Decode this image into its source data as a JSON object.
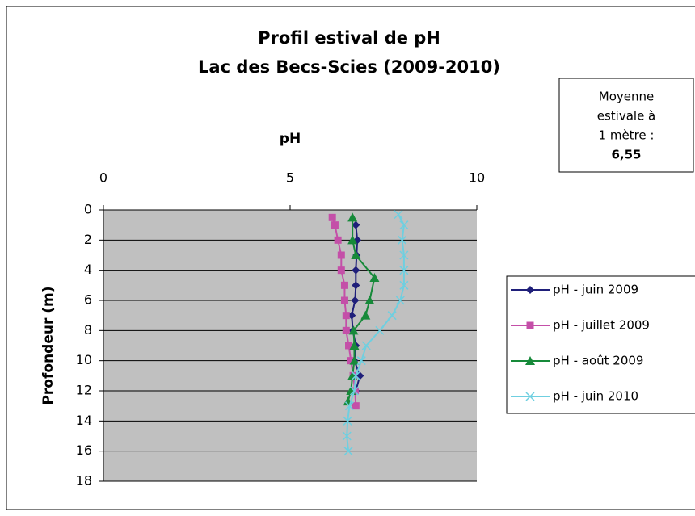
{
  "chart_data": {
    "type": "line",
    "title": [
      "Profil estival de pH",
      "Lac des Becs-Scies (2009-2010)"
    ],
    "xlabel": "pH",
    "ylabel": "Profondeur (m)",
    "xlim": [
      0,
      10
    ],
    "xticks": [
      0,
      5,
      10
    ],
    "ylim": [
      0,
      18
    ],
    "yticks": [
      0,
      2,
      4,
      6,
      8,
      10,
      12,
      14,
      16,
      18
    ],
    "y_inverted": true,
    "grid": true,
    "legend": "right",
    "annotation": {
      "lines": [
        "Moyenne",
        "estivale à",
        "1 mètre :"
      ],
      "value": "6,55"
    },
    "series": [
      {
        "name": "pH - juin 2009",
        "color": "#1f1f7a",
        "marker": "diamond",
        "x": [
          6.76,
          6.8,
          6.78,
          6.76,
          6.76,
          6.74,
          6.65,
          6.68,
          6.76,
          6.72,
          6.87,
          6.76
        ],
        "y": [
          1,
          2,
          3,
          4,
          5,
          6,
          7,
          8,
          9,
          10,
          11,
          12
        ]
      },
      {
        "name": "pH - juillet 2009",
        "color": "#c44fa8",
        "marker": "square",
        "x": [
          6.13,
          6.2,
          6.28,
          6.37,
          6.37,
          6.46,
          6.46,
          6.5,
          6.5,
          6.57,
          6.63,
          6.69,
          6.74,
          6.76
        ],
        "y": [
          0.5,
          1,
          2,
          3,
          4,
          5,
          6,
          7,
          8,
          9,
          10,
          11,
          12,
          13
        ]
      },
      {
        "name": "pH - août 2009",
        "color": "#178a3a",
        "marker": "triangle",
        "x": [
          6.67,
          6.67,
          6.76,
          7.26,
          7.13,
          7.02,
          6.7,
          6.72,
          6.72,
          6.67,
          6.63,
          6.55
        ],
        "y": [
          0.5,
          2,
          3,
          4.5,
          6,
          7,
          8,
          9,
          10,
          11,
          12,
          12.7
        ]
      },
      {
        "name": "pH - juin 2010",
        "color": "#6fcfe0",
        "marker": "x",
        "x": [
          7.9,
          8.05,
          8.0,
          8.05,
          8.05,
          8.05,
          7.95,
          7.73,
          7.4,
          7.04,
          6.91,
          6.76,
          6.72,
          6.59,
          6.54,
          6.52,
          6.56
        ],
        "y": [
          0.3,
          1,
          2,
          3,
          4,
          5,
          6,
          7,
          8,
          9,
          10,
          11,
          12,
          13,
          14,
          15,
          16
        ]
      }
    ]
  }
}
